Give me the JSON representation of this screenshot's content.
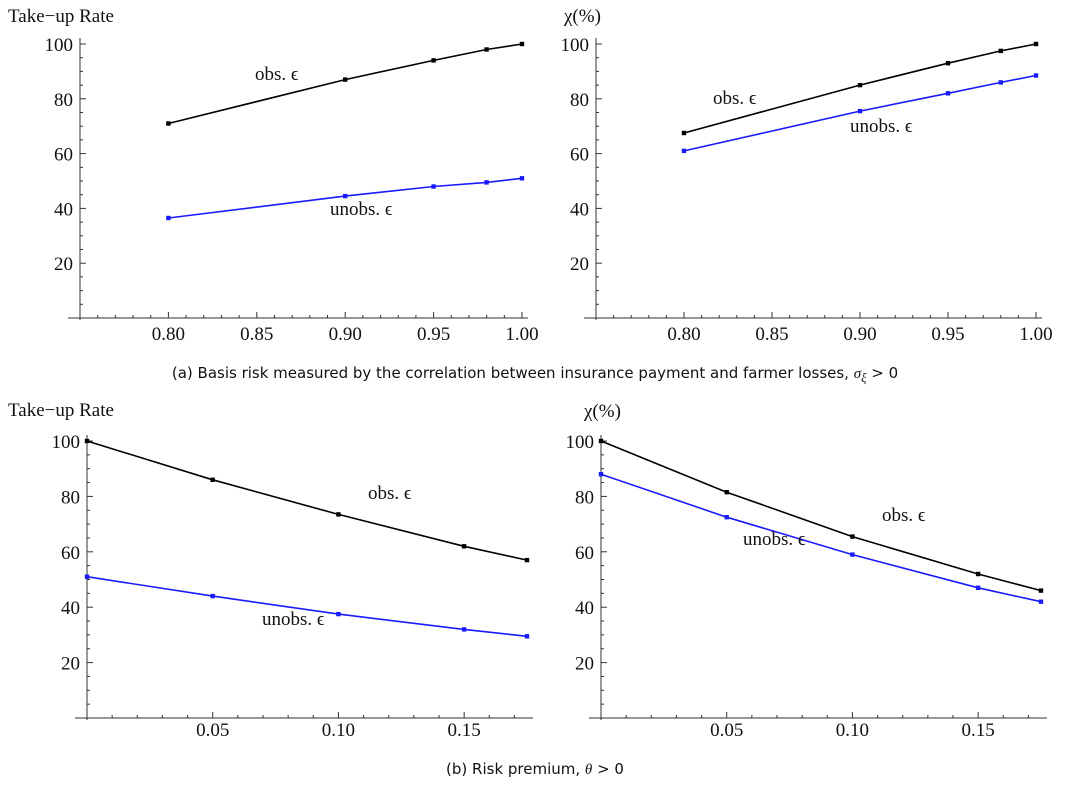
{
  "colors": {
    "obs": "#000000",
    "unobs": "#1a1aff",
    "axis": "#333333"
  },
  "captions": {
    "a_text": "(a) Basis risk measured by the correlation between insurance payment and farmer losses, ",
    "a_math": "σ",
    "a_sub": "ξ",
    "a_tail": " > 0",
    "b_text": "(b) Risk premium, ",
    "b_math": "θ",
    "b_tail": " > 0"
  },
  "chart_data": [
    {
      "id": "a-left",
      "type": "line",
      "ylabel": "Take−up Rate",
      "xlim": [
        0.75,
        1.0
      ],
      "ylim": [
        0,
        100
      ],
      "xticks": [
        "0.80",
        "0.85",
        "0.90",
        "0.95",
        "1.00"
      ],
      "xtick_values": [
        0.8,
        0.85,
        0.9,
        0.95,
        1.0
      ],
      "yticks": [
        20,
        40,
        60,
        80,
        100
      ],
      "series": [
        {
          "name": "obs. ϵ",
          "key": "obs",
          "x": [
            0.8,
            0.9,
            0.95,
            0.98,
            1.0
          ],
          "values": [
            71,
            87,
            94,
            98,
            100
          ]
        },
        {
          "name": "unobs. ϵ",
          "key": "unobs",
          "x": [
            0.8,
            0.9,
            0.95,
            0.98,
            1.0
          ],
          "values": [
            36.5,
            44.5,
            48,
            49.5,
            51
          ]
        }
      ]
    },
    {
      "id": "a-right",
      "type": "line",
      "ylabel": "χ(%)",
      "xlim": [
        0.75,
        1.0
      ],
      "ylim": [
        0,
        100
      ],
      "xticks": [
        "0.80",
        "0.85",
        "0.90",
        "0.95",
        "1.00"
      ],
      "xtick_values": [
        0.8,
        0.85,
        0.9,
        0.95,
        1.0
      ],
      "yticks": [
        20,
        40,
        60,
        80,
        100
      ],
      "series": [
        {
          "name": "obs. ϵ",
          "key": "obs",
          "x": [
            0.8,
            0.9,
            0.95,
            0.98,
            1.0
          ],
          "values": [
            67.5,
            85,
            93,
            97.5,
            100
          ]
        },
        {
          "name": "unobs. ϵ",
          "key": "unobs",
          "x": [
            0.8,
            0.9,
            0.95,
            0.98,
            1.0
          ],
          "values": [
            61,
            75.5,
            82,
            86,
            88.5
          ]
        }
      ]
    },
    {
      "id": "b-left",
      "type": "line",
      "ylabel": "Take−up Rate",
      "xlim": [
        0,
        0.175
      ],
      "ylim": [
        0,
        100
      ],
      "xticks": [
        "0.05",
        "0.10",
        "0.15"
      ],
      "xtick_values": [
        0.05,
        0.1,
        0.15
      ],
      "yticks": [
        20,
        40,
        60,
        80,
        100
      ],
      "series": [
        {
          "name": "obs. ϵ",
          "key": "obs",
          "x": [
            0,
            0.05,
            0.1,
            0.15,
            0.175
          ],
          "values": [
            100,
            86,
            73.5,
            62,
            57
          ]
        },
        {
          "name": "unobs. ϵ",
          "key": "unobs",
          "x": [
            0,
            0.05,
            0.1,
            0.15,
            0.175
          ],
          "values": [
            51,
            44,
            37.5,
            32,
            29.5
          ]
        }
      ]
    },
    {
      "id": "b-right",
      "type": "line",
      "ylabel": "χ(%)",
      "xlim": [
        0,
        0.175
      ],
      "ylim": [
        0,
        100
      ],
      "xticks": [
        "0.05",
        "0.10",
        "0.15"
      ],
      "xtick_values": [
        0.05,
        0.1,
        0.15
      ],
      "yticks": [
        20,
        40,
        60,
        80,
        100
      ],
      "series": [
        {
          "name": "obs. ϵ",
          "key": "obs",
          "x": [
            0,
            0.05,
            0.1,
            0.15,
            0.175
          ],
          "values": [
            100,
            81.5,
            65.5,
            52,
            46
          ]
        },
        {
          "name": "unobs. ϵ",
          "key": "unobs",
          "x": [
            0,
            0.05,
            0.1,
            0.15,
            0.175
          ],
          "values": [
            88,
            72.5,
            59,
            47,
            42
          ]
        }
      ]
    }
  ]
}
